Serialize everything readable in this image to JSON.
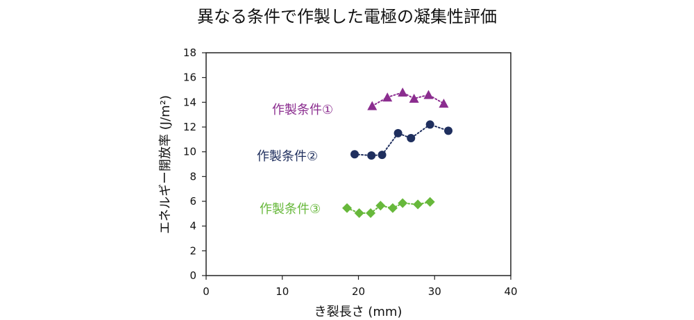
{
  "chart_data": {
    "type": "scatter",
    "title": "異なる条件で作製した電極の凝集性評価",
    "xlabel": "き裂長さ (mm)",
    "ylabel": "エネルギー開放率 (J/m²)",
    "xlim": [
      0,
      40
    ],
    "ylim": [
      0,
      18
    ],
    "x_ticks": [
      "0",
      "10",
      "20",
      "30",
      "40"
    ],
    "y_ticks": [
      "0",
      "2",
      "4",
      "6",
      "8",
      "10",
      "12",
      "14",
      "16",
      "18"
    ],
    "series": [
      {
        "name": "作製条件①",
        "color": "#8B2D8F",
        "marker": "triangle",
        "points": [
          {
            "x": 21.8,
            "y": 13.7
          },
          {
            "x": 23.8,
            "y": 14.4
          },
          {
            "x": 25.8,
            "y": 14.8
          },
          {
            "x": 27.3,
            "y": 14.3
          },
          {
            "x": 29.2,
            "y": 14.6
          },
          {
            "x": 31.2,
            "y": 13.9
          }
        ]
      },
      {
        "name": "作製条件②",
        "color": "#1F2F5E",
        "marker": "circle",
        "points": [
          {
            "x": 19.5,
            "y": 9.8
          },
          {
            "x": 21.7,
            "y": 9.7
          },
          {
            "x": 23.1,
            "y": 9.75
          },
          {
            "x": 25.2,
            "y": 11.5
          },
          {
            "x": 26.9,
            "y": 11.1
          },
          {
            "x": 29.4,
            "y": 12.2
          },
          {
            "x": 31.8,
            "y": 11.7
          }
        ]
      },
      {
        "name": "作製条件③",
        "color": "#67B83B",
        "marker": "diamond",
        "points": [
          {
            "x": 18.5,
            "y": 5.45
          },
          {
            "x": 20.1,
            "y": 5.05
          },
          {
            "x": 21.6,
            "y": 5.05
          },
          {
            "x": 22.9,
            "y": 5.65
          },
          {
            "x": 24.5,
            "y": 5.45
          },
          {
            "x": 25.8,
            "y": 5.85
          },
          {
            "x": 27.8,
            "y": 5.75
          },
          {
            "x": 29.4,
            "y": 5.95
          }
        ]
      }
    ]
  }
}
